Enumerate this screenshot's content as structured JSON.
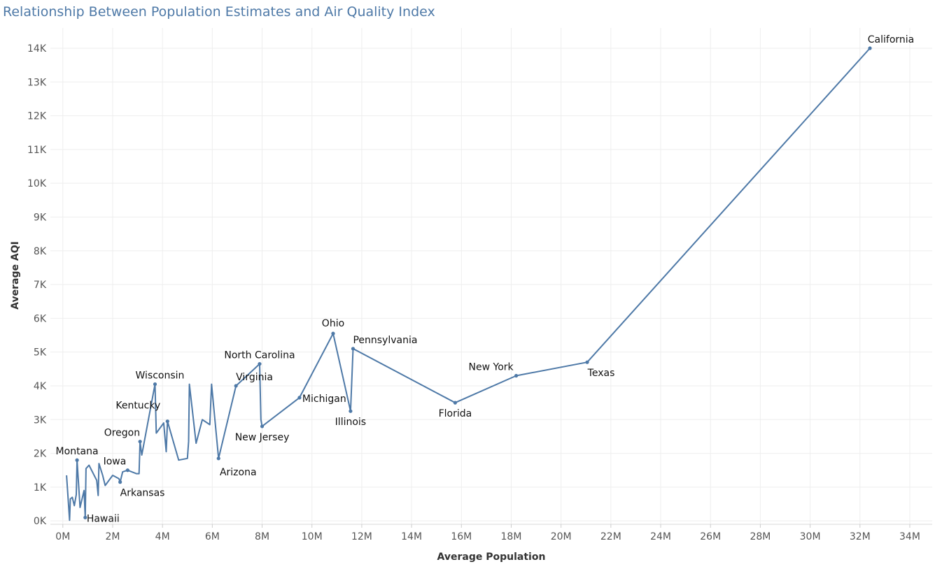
{
  "chart_data": {
    "type": "line",
    "title": "Relationship Between Population Estimates and Air Quality Index",
    "xlabel": "Average Population",
    "ylabel": "Average AQI",
    "xlim": [
      -0.5,
      34.9
    ],
    "ylim": [
      -100,
      14600
    ],
    "x_ticks": [
      0,
      2,
      4,
      6,
      8,
      10,
      12,
      14,
      16,
      18,
      20,
      22,
      24,
      26,
      28,
      30,
      32,
      34
    ],
    "x_tick_labels": [
      "0M",
      "2M",
      "4M",
      "6M",
      "8M",
      "10M",
      "12M",
      "14M",
      "16M",
      "18M",
      "20M",
      "22M",
      "24M",
      "26M",
      "28M",
      "30M",
      "32M",
      "34M"
    ],
    "y_ticks": [
      0,
      1000,
      2000,
      3000,
      4000,
      5000,
      6000,
      7000,
      8000,
      9000,
      10000,
      11000,
      12000,
      13000,
      14000
    ],
    "y_tick_labels": [
      "0K",
      "1K",
      "2K",
      "3K",
      "4K",
      "5K",
      "6K",
      "7K",
      "8K",
      "9K",
      "10K",
      "11K",
      "12K",
      "13K",
      "14K"
    ],
    "grid": true,
    "color": "#4e79a7",
    "x_unit": "millions",
    "points": [
      {
        "x": 0.15,
        "y": 1350
      },
      {
        "x": 0.27,
        "y": 20
      },
      {
        "x": 0.3,
        "y": 650
      },
      {
        "x": 0.38,
        "y": 700
      },
      {
        "x": 0.46,
        "y": 450
      },
      {
        "x": 0.54,
        "y": 780
      },
      {
        "x": 0.57,
        "y": 1800,
        "label": "Montana"
      },
      {
        "x": 0.69,
        "y": 400
      },
      {
        "x": 0.85,
        "y": 900
      },
      {
        "x": 0.9,
        "y": 100,
        "label": "Hawaii"
      },
      {
        "x": 0.93,
        "y": 1550
      },
      {
        "x": 1.05,
        "y": 1650
      },
      {
        "x": 1.36,
        "y": 1200
      },
      {
        "x": 1.42,
        "y": 750
      },
      {
        "x": 1.45,
        "y": 1700
      },
      {
        "x": 1.6,
        "y": 1350
      },
      {
        "x": 1.7,
        "y": 1050
      },
      {
        "x": 2.0,
        "y": 1350
      },
      {
        "x": 2.25,
        "y": 1250
      },
      {
        "x": 2.3,
        "y": 1150,
        "label": "Arkansas"
      },
      {
        "x": 2.4,
        "y": 1450
      },
      {
        "x": 2.6,
        "y": 1500,
        "label": "Iowa"
      },
      {
        "x": 2.95,
        "y": 1400
      },
      {
        "x": 3.06,
        "y": 1400
      },
      {
        "x": 3.1,
        "y": 2350,
        "label": "Oregon"
      },
      {
        "x": 3.17,
        "y": 1950
      },
      {
        "x": 3.7,
        "y": 4050,
        "label": "Wisconsin"
      },
      {
        "x": 3.75,
        "y": 2600
      },
      {
        "x": 4.05,
        "y": 2900
      },
      {
        "x": 4.15,
        "y": 2050
      },
      {
        "x": 4.2,
        "y": 2950,
        "label": "Kentucky"
      },
      {
        "x": 4.65,
        "y": 1800
      },
      {
        "x": 5.0,
        "y": 1850
      },
      {
        "x": 5.05,
        "y": 2350
      },
      {
        "x": 5.08,
        "y": 4050
      },
      {
        "x": 5.35,
        "y": 2300
      },
      {
        "x": 5.6,
        "y": 3000
      },
      {
        "x": 5.9,
        "y": 2850
      },
      {
        "x": 5.97,
        "y": 4050
      },
      {
        "x": 6.25,
        "y": 1850,
        "label": "Arizona"
      },
      {
        "x": 6.95,
        "y": 4000,
        "label": "Virginia"
      },
      {
        "x": 7.9,
        "y": 4650,
        "label": "North Carolina"
      },
      {
        "x": 7.95,
        "y": 3000
      },
      {
        "x": 8.0,
        "y": 2800,
        "label": "New Jersey"
      },
      {
        "x": 9.5,
        "y": 3650,
        "label": "Michigan"
      },
      {
        "x": 10.85,
        "y": 5550,
        "label": "Ohio"
      },
      {
        "x": 11.55,
        "y": 3250,
        "label": "Illinois"
      },
      {
        "x": 11.65,
        "y": 5100,
        "label": "Pennsylvania"
      },
      {
        "x": 15.75,
        "y": 3500,
        "label": "Florida"
      },
      {
        "x": 18.2,
        "y": 4300,
        "label": "New York"
      },
      {
        "x": 21.05,
        "y": 4700,
        "label": "Texas"
      },
      {
        "x": 32.4,
        "y": 14000,
        "label": "California"
      }
    ]
  }
}
